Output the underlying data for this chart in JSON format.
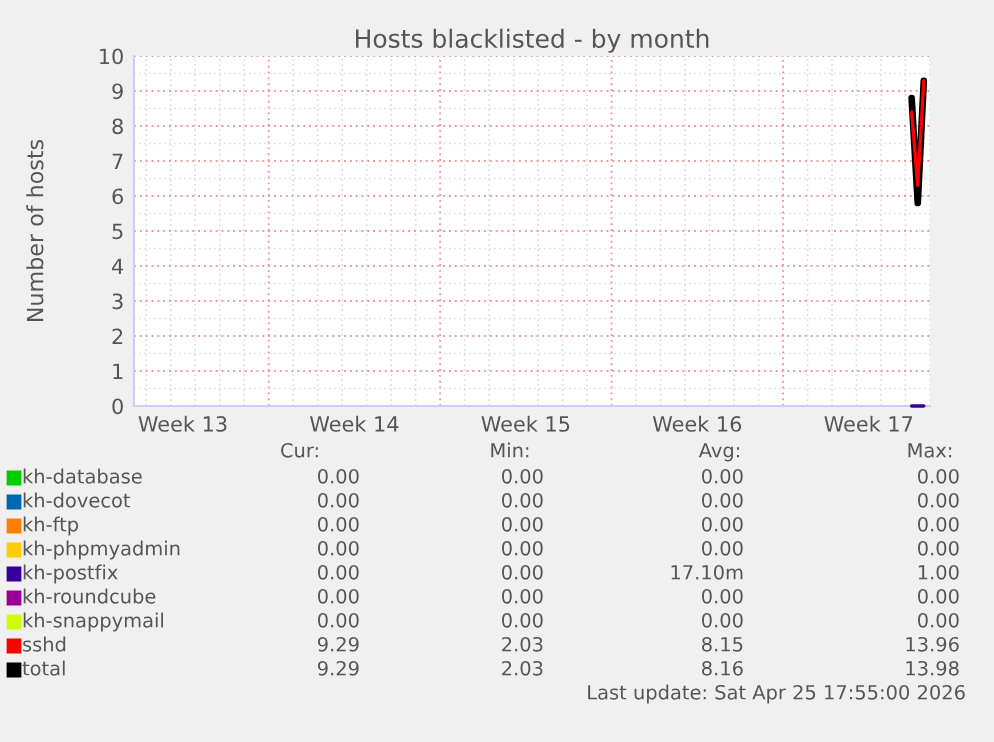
{
  "chart_data": {
    "type": "line",
    "title": "Hosts blacklisted - by month",
    "ylabel": "Number of hosts",
    "xlim": [
      "2026-03-24T12:00",
      "2026-04-26T00:00"
    ],
    "ylim": [
      0,
      10
    ],
    "yticks": [
      0,
      1,
      2,
      3,
      4,
      5,
      6,
      7,
      8,
      9,
      10
    ],
    "xticks": [
      {
        "value": "2026-03-26T12:00",
        "label": "Week 13"
      },
      {
        "value": "2026-03-30",
        "label": null
      },
      {
        "value": "2026-04-02T12:00",
        "label": "Week 14"
      },
      {
        "value": "2026-04-06",
        "label": null
      },
      {
        "value": "2026-04-09T12:00",
        "label": "Week 15"
      },
      {
        "value": "2026-04-13",
        "label": null
      },
      {
        "value": "2026-04-16T12:00",
        "label": "Week 16"
      },
      {
        "value": "2026-04-20",
        "label": null
      },
      {
        "value": "2026-04-23T12:00",
        "label": "Week 17"
      }
    ],
    "grid": true,
    "legend": "bottom",
    "series": [
      {
        "name": "kh-database",
        "color": "#00cc00"
      },
      {
        "name": "kh-dovecot",
        "color": "#0066b3"
      },
      {
        "name": "kh-ftp",
        "color": "#ff8000"
      },
      {
        "name": "kh-phpmyadmin",
        "color": "#ffcc00"
      },
      {
        "name": "kh-postfix",
        "color": "#330099",
        "x": [
          "2026-04-25T06:00",
          "2026-04-25T12:00",
          "2026-04-25T17:55"
        ],
        "values": [
          0,
          0,
          0
        ]
      },
      {
        "name": "kh-roundcube",
        "color": "#990099"
      },
      {
        "name": "kh-snappymail",
        "color": "#ccff00"
      },
      {
        "name": "sshd",
        "color": "#ff0000",
        "x": [
          "2026-04-25T06:00",
          "2026-04-25T12:00",
          "2026-04-25T17:55"
        ],
        "values": [
          8.4,
          6.3,
          9.29
        ]
      },
      {
        "name": "total",
        "color": "#000000",
        "x": [
          "2026-04-25T06:00",
          "2026-04-25T12:00",
          "2026-04-25T17:55"
        ],
        "values": [
          8.8,
          5.8,
          9.29
        ]
      }
    ],
    "annotations": [
      "Cur:",
      "Min:",
      "Avg:",
      "Max:",
      "0.00",
      "0.00",
      "0.00",
      "0.00",
      "0.00",
      "0.00",
      "0.00",
      "0.00",
      "0.00",
      "0.00",
      "0.00",
      "0.00",
      "0.00",
      "0.00",
      "0.00",
      "0.00",
      "0.00",
      "0.00",
      "17.10m",
      "1.00",
      "0.00",
      "0.00",
      "0.00",
      "0.00",
      "0.00",
      "0.00",
      "0.00",
      "0.00",
      "9.29",
      "2.03",
      "8.15",
      "13.96",
      "9.29",
      "2.03",
      "8.16",
      "13.98",
      "Last update: Sat Apr 25 17:55:00 2026"
    ]
  }
}
